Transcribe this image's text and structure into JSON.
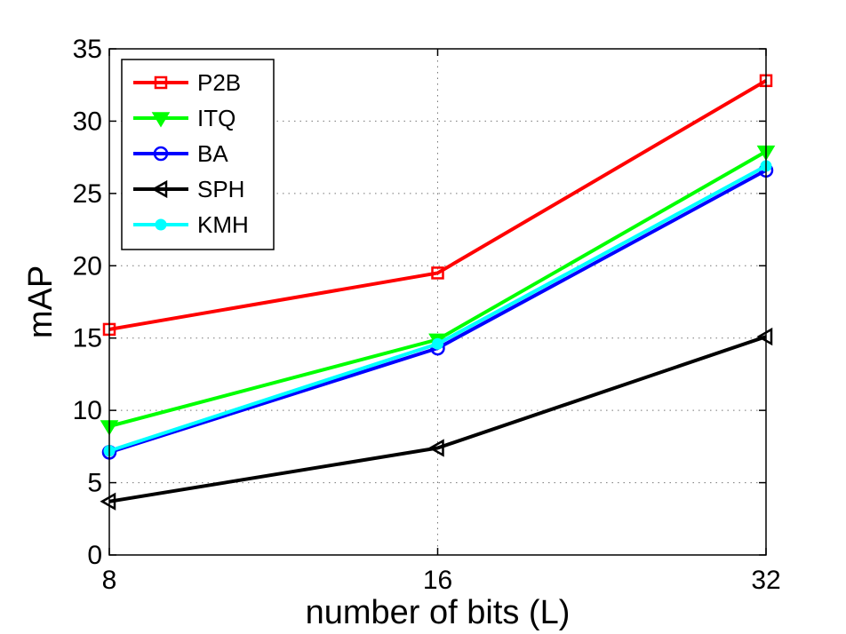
{
  "chart_data": {
    "type": "line",
    "title": "",
    "xlabel": "number of bits (L)",
    "ylabel": "mAP",
    "x": [
      8,
      16,
      32
    ],
    "x_tick_labels": [
      "8",
      "16",
      "32"
    ],
    "y_ticks": [
      0,
      5,
      10,
      15,
      20,
      25,
      30,
      35
    ],
    "y_tick_labels": [
      "0",
      "5",
      "10",
      "15",
      "20",
      "25",
      "30",
      "35"
    ],
    "ylim": [
      0,
      35
    ],
    "grid": true,
    "legend_position": "top-left",
    "series": [
      {
        "name": "P2B",
        "values": [
          15.6,
          19.5,
          32.8
        ],
        "color": "#ff0000",
        "marker": "square"
      },
      {
        "name": "ITQ",
        "values": [
          8.9,
          14.9,
          27.9
        ],
        "color": "#00ff00",
        "marker": "triangle-down"
      },
      {
        "name": "BA",
        "values": [
          7.1,
          14.3,
          26.6
        ],
        "color": "#0000ff",
        "marker": "circle"
      },
      {
        "name": "SPH",
        "values": [
          3.7,
          7.4,
          15.1
        ],
        "color": "#000000",
        "marker": "triangle-left"
      },
      {
        "name": "KMH",
        "values": [
          7.2,
          14.6,
          26.9
        ],
        "color": "#00ffff",
        "marker": "dot"
      }
    ]
  }
}
